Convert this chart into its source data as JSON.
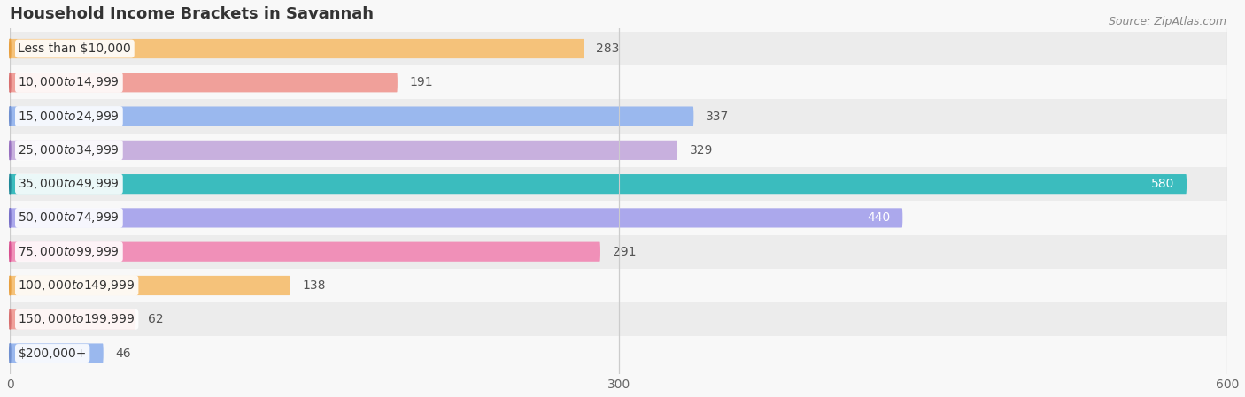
{
  "title": "Household Income Brackets in Savannah",
  "source": "Source: ZipAtlas.com",
  "categories": [
    "Less than $10,000",
    "$10,000 to $14,999",
    "$15,000 to $24,999",
    "$25,000 to $34,999",
    "$35,000 to $49,999",
    "$50,000 to $74,999",
    "$75,000 to $99,999",
    "$100,000 to $149,999",
    "$150,000 to $199,999",
    "$200,000+"
  ],
  "values": [
    283,
    191,
    337,
    329,
    580,
    440,
    291,
    138,
    62,
    46
  ],
  "bar_colors": [
    "#f5c27a",
    "#f0a09a",
    "#9ab8ee",
    "#c8b0de",
    "#3bbcbe",
    "#aba8ec",
    "#f090b8",
    "#f5c27a",
    "#f0a09a",
    "#9ab8ee"
  ],
  "dot_colors": [
    "#e8a040",
    "#d87070",
    "#7090d0",
    "#9870c0",
    "#208898",
    "#7870c8",
    "#d85090",
    "#e8a040",
    "#d87070",
    "#7090d0"
  ],
  "value_inside": [
    false,
    false,
    false,
    false,
    true,
    true,
    false,
    false,
    false,
    false
  ],
  "xlim": [
    0,
    600
  ],
  "xticks": [
    0,
    300,
    600
  ],
  "bar_height": 0.58,
  "row_colors": [
    "#ececec",
    "#f8f8f8",
    "#ececec",
    "#f8f8f8",
    "#ececec",
    "#f8f8f8",
    "#ececec",
    "#f8f8f8",
    "#ececec",
    "#f8f8f8"
  ],
  "background_color": "#f8f8f8",
  "title_fontsize": 13,
  "label_fontsize": 10,
  "value_fontsize": 10,
  "source_fontsize": 9
}
